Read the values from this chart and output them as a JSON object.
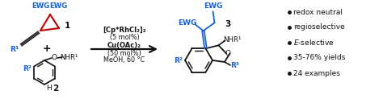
{
  "bg_color": "#ffffff",
  "bullet_points": [
    "redox neutral",
    "regioselective",
    "E-selective",
    "35-76% yields",
    "24 examples"
  ],
  "reagents_line1": "[Cp*RhCl₂]₂",
  "reagents_line2": "(5 mol%)",
  "reagents_line3": "Cu(OAc)₂",
  "reagents_line4": "(50 mol%)",
  "reagents_line5": "MeOH, 60 °C",
  "blue_color": "#1a5fd4",
  "black_color": "#111111",
  "red_color": "#cc2200",
  "figsize": [
    4.74,
    1.23
  ],
  "dpi": 100
}
